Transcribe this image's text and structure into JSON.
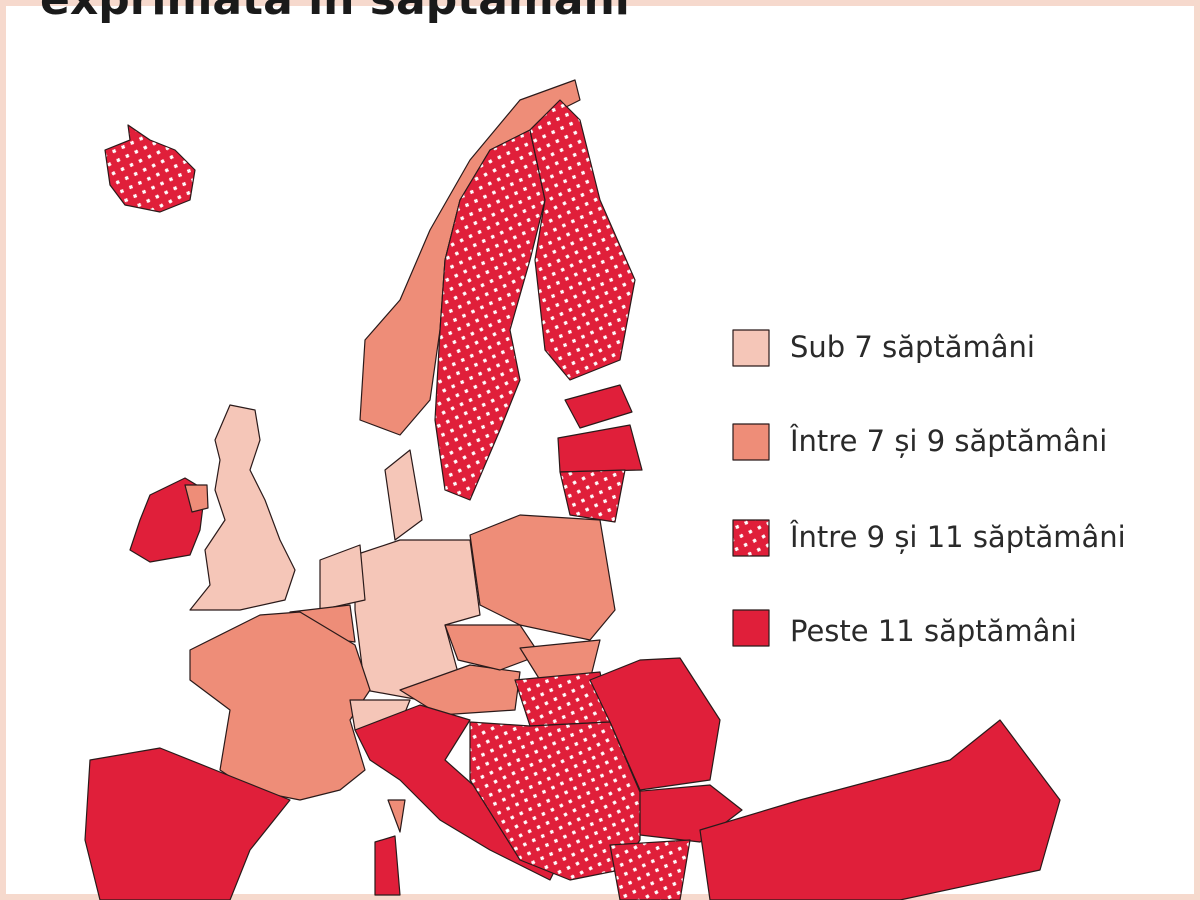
{
  "title": "exprimată în săptămâni",
  "legend": [
    {
      "label": "Sub 7 săptămâni",
      "color": "#f5c6b8"
    },
    {
      "label": "Între 7 și 9 săptămâni",
      "color": "#ee8d78"
    },
    {
      "label": "Între 9 și 11 săptămâni",
      "color": "#e01f3a",
      "pattern": "dots"
    },
    {
      "label": "Peste 11 săptămâni",
      "color": "#e01f3a"
    }
  ]
}
